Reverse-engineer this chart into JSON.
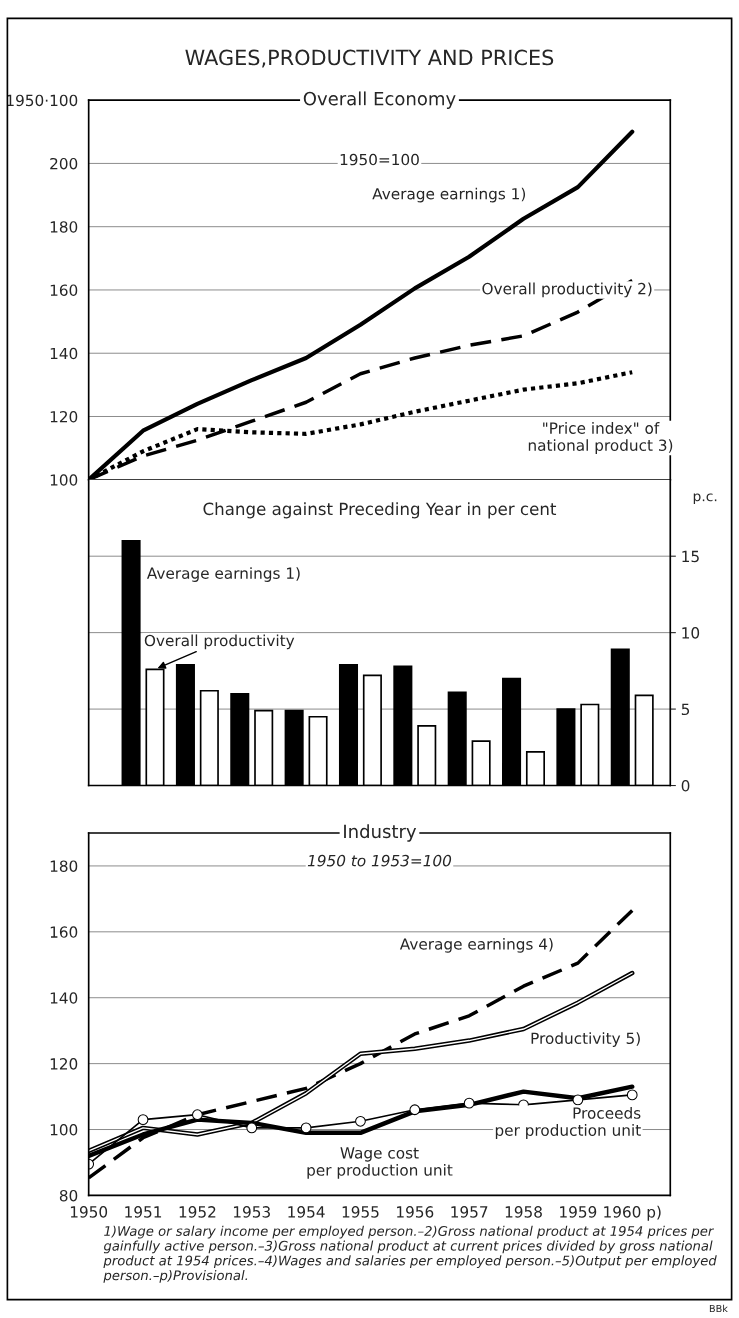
{
  "chart_data": [
    {
      "type": "line",
      "title": "WAGES,PRODUCTIVITY AND PRICES",
      "subtitle": "Overall Economy",
      "annotations": [
        "1950=100"
      ],
      "x": [
        1950,
        1951,
        1952,
        1953,
        1954,
        1955,
        1956,
        1957,
        1958,
        1959,
        1960
      ],
      "series": [
        {
          "name": "Average earnings 1)",
          "color": "#000000",
          "line_style": "solid",
          "values": [
            100,
            115.5,
            124,
            131.5,
            138.5,
            149,
            160.5,
            170.5,
            182.5,
            192.5,
            210
          ]
        },
        {
          "name": "Overall productivity 2)",
          "color": "#000000",
          "line_style": "dashed",
          "values": [
            100,
            107.5,
            112.5,
            118.5,
            124.5,
            133.5,
            138.5,
            142.5,
            145.5,
            153,
            163
          ]
        },
        {
          "name": "\"Price index\" of\nnational product 3)",
          "color": "#000000",
          "line_style": "dotted",
          "values": [
            100,
            109,
            116,
            115,
            114.5,
            117.5,
            121.5,
            125,
            128.5,
            130.5,
            134
          ]
        }
      ],
      "xlim": [
        1950,
        1960.7
      ],
      "ylim": [
        100,
        220
      ],
      "yticks": [
        100,
        120,
        140,
        160,
        180,
        200,
        {
          "value": 220,
          "label": "1950·100"
        }
      ],
      "tick_labels": "y",
      "grid": "y",
      "legend": false
    },
    {
      "type": "bar",
      "title": "Change against Preceding Year in per cent",
      "ylabel": "p.c.",
      "categories": [
        null,
        null,
        null,
        null,
        null,
        null,
        null,
        null,
        null,
        null
      ],
      "series": [
        {
          "name": "Average earnings 1)",
          "color": "#000000",
          "values": [
            16,
            7.9,
            6,
            4.9,
            7.9,
            7.8,
            6.1,
            7,
            5,
            8.9
          ]
        },
        {
          "name": "Overall productivity",
          "color": "#ffffff",
          "values": [
            7.6,
            6.2,
            4.9,
            4.5,
            7.2,
            3.9,
            2.9,
            2.2,
            5.3,
            5.9
          ]
        }
      ],
      "ylim": [
        0,
        20
      ],
      "yticks": [
        0,
        5,
        10,
        15
      ],
      "tick_labels": "y",
      "grid": "y",
      "legend": false
    },
    {
      "type": "line",
      "title": "Industry",
      "annotations": [
        "1950 to 1953=100",
        "1)Wage or salary income per employed person.–2)Gross national product at 1954 prices per gainfully active person.–3)Gross national product at current prices divided by gross national product at 1954 prices.–4)Wages and salaries per employed person.–5)Output per employed person.–p)Provisional.",
        "BBk"
      ],
      "x": [
        1950,
        1951,
        1952,
        1953,
        1954,
        1955,
        1956,
        1957,
        1958,
        1959,
        1960
      ],
      "series": [
        {
          "name": "Average earnings 4)",
          "color": "#000000",
          "line_style": "dashed",
          "values": [
            85.3,
            97.5,
            104.5,
            108.5,
            112.5,
            120,
            129,
            134.5,
            143.5,
            150.5,
            166.5
          ]
        },
        {
          "name": "Productivity 5)",
          "color": "#000000",
          "line_style": "solid",
          "values": [
            93.5,
            100.5,
            98.5,
            102,
            111,
            123,
            124.5,
            127,
            130.5,
            138.5,
            147.5
          ]
        },
        {
          "name": "Wage cost\nper production unit",
          "color": "#000000",
          "line_style": "solid",
          "values": [
            92,
            98.5,
            103,
            102,
            99,
            99,
            105.5,
            107.5,
            111.5,
            109.5,
            113
          ]
        },
        {
          "name": "Proceeds\nper production unit",
          "color": "#000000",
          "line_style": "solid",
          "marker": "circle",
          "values": [
            89.5,
            103,
            104.5,
            100.5,
            100.5,
            102.5,
            106,
            108,
            107.5,
            109,
            110.5
          ]
        }
      ],
      "xlim": [
        1950,
        1960.7
      ],
      "xticks": [
        1950,
        1951,
        1952,
        1953,
        1954,
        1955,
        1956,
        1957,
        1958,
        1959,
        {
          "value": 1960,
          "label": "1960 p)"
        }
      ],
      "ylim": [
        80,
        190
      ],
      "yticks": [
        80,
        100,
        120,
        140,
        160,
        180
      ],
      "grid": "y",
      "legend": false
    }
  ]
}
